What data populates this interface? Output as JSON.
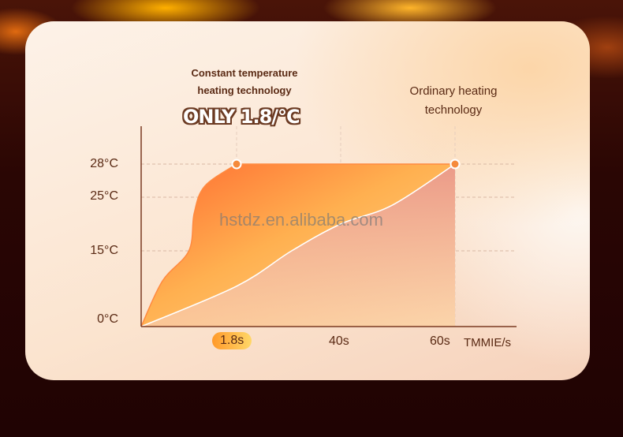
{
  "chart_data": {
    "type": "area",
    "title": "",
    "annotations": {
      "left_title": [
        "Constant temperature",
        "heating technology"
      ],
      "highlight": "ONLY 1.8/°C",
      "right_title": [
        "Ordinary heating",
        "technology"
      ]
    },
    "xlabel": "TMMIE/s",
    "ylabel": "",
    "x_ticks": [
      {
        "value": 1.8,
        "label": "1.8s",
        "highlighted": true
      },
      {
        "value": 40,
        "label": "40s"
      },
      {
        "value": 60,
        "label": "60s"
      }
    ],
    "y_ticks": [
      {
        "value": 0,
        "label": "0°C"
      },
      {
        "value": 15,
        "label": "15°C"
      },
      {
        "value": 25,
        "label": "25°C"
      },
      {
        "value": 28,
        "label": "28°C"
      }
    ],
    "grid": true,
    "series": [
      {
        "key": "constant",
        "x": [
          0,
          0.4,
          0.9,
          1.0,
          1.2,
          1.8,
          60
        ],
        "y": [
          0,
          9,
          15,
          22,
          26,
          28,
          28
        ],
        "color": "#ff7a35"
      },
      {
        "key": "ordinary",
        "x": [
          0,
          1.8,
          22,
          40,
          49,
          60
        ],
        "y": [
          0,
          8,
          15,
          20,
          23.5,
          28
        ],
        "color": "#eea090"
      }
    ],
    "markers": [
      {
        "x": 1.8,
        "y": 28
      },
      {
        "x": 60,
        "y": 28
      }
    ]
  },
  "watermark": "hstdz.en.alibaba.com",
  "colors": {
    "accent": "#f58a3c",
    "text": "#5a2a14",
    "axis": "#7a3a22"
  }
}
